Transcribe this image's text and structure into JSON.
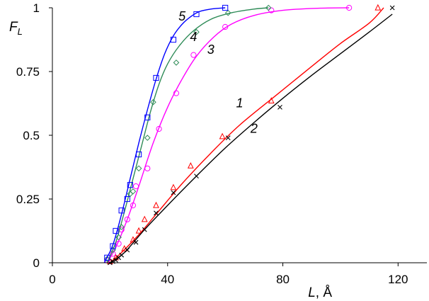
{
  "chart_data": {
    "type": "line",
    "xlabel_var": "L",
    "xlabel_unit": ", Å",
    "ylabel_var": "F",
    "ylabel_sub": "L",
    "xlim": [
      0,
      130
    ],
    "ylim": [
      0,
      1
    ],
    "xticks": [
      0,
      40,
      80,
      120
    ],
    "yticks": [
      0,
      0.25,
      0.5,
      0.75,
      1
    ],
    "ytick_labels": [
      "0",
      "0.25",
      "0.5",
      "0.75",
      "1"
    ],
    "series": [
      {
        "name": "1",
        "color": "#ff0000",
        "marker": "triangle",
        "curve": [
          [
            20,
            0
          ],
          [
            24,
            0.04
          ],
          [
            30,
            0.11
          ],
          [
            36,
            0.19
          ],
          [
            45,
            0.31
          ],
          [
            55,
            0.43
          ],
          [
            65,
            0.54
          ],
          [
            78,
            0.66
          ],
          [
            90,
            0.77
          ],
          [
            100,
            0.86
          ],
          [
            110,
            0.94
          ],
          [
            115,
            1.0
          ]
        ],
        "points": [
          [
            20,
            0.005
          ],
          [
            22,
            0.02
          ],
          [
            25,
            0.055
          ],
          [
            28,
            0.09
          ],
          [
            30,
            0.125
          ],
          [
            32,
            0.17
          ],
          [
            36,
            0.225
          ],
          [
            42,
            0.295
          ],
          [
            48,
            0.38
          ],
          [
            59,
            0.495
          ],
          [
            76,
            0.635
          ],
          [
            113,
            1.0
          ]
        ]
      },
      {
        "name": "2",
        "color": "#000000",
        "marker": "x",
        "curve": [
          [
            20,
            0
          ],
          [
            25,
            0.04
          ],
          [
            32,
            0.13
          ],
          [
            40,
            0.225
          ],
          [
            50,
            0.34
          ],
          [
            60,
            0.45
          ],
          [
            70,
            0.55
          ],
          [
            80,
            0.645
          ],
          [
            90,
            0.735
          ],
          [
            100,
            0.82
          ],
          [
            110,
            0.905
          ],
          [
            118,
            0.975
          ]
        ],
        "points": [
          [
            20,
            0.0
          ],
          [
            21,
            0.005
          ],
          [
            22,
            0.01
          ],
          [
            23,
            0.02
          ],
          [
            24,
            0.03
          ],
          [
            26,
            0.05
          ],
          [
            29,
            0.08
          ],
          [
            32,
            0.13
          ],
          [
            36,
            0.195
          ],
          [
            42,
            0.275
          ],
          [
            50,
            0.34
          ],
          [
            61,
            0.49
          ],
          [
            79,
            0.61
          ],
          [
            118,
            1.0
          ]
        ]
      },
      {
        "name": "3",
        "color": "#ff00ff",
        "marker": "circle",
        "curve": [
          [
            19,
            0
          ],
          [
            22,
            0.06
          ],
          [
            26,
            0.17
          ],
          [
            30,
            0.3
          ],
          [
            35,
            0.47
          ],
          [
            40,
            0.61
          ],
          [
            45,
            0.72
          ],
          [
            50,
            0.81
          ],
          [
            56,
            0.885
          ],
          [
            62,
            0.935
          ],
          [
            70,
            0.97
          ],
          [
            80,
            0.99
          ],
          [
            92,
            0.998
          ],
          [
            103,
            1.0
          ]
        ],
        "points": [
          [
            19,
            0.01
          ],
          [
            21,
            0.035
          ],
          [
            23,
            0.075
          ],
          [
            24,
            0.13
          ],
          [
            26,
            0.17
          ],
          [
            28,
            0.225
          ],
          [
            29,
            0.3
          ],
          [
            33,
            0.37
          ],
          [
            37,
            0.525
          ],
          [
            43,
            0.665
          ],
          [
            49,
            0.815
          ],
          [
            60,
            0.925
          ],
          [
            76,
            0.99
          ],
          [
            103,
            1.0
          ]
        ]
      },
      {
        "name": "4",
        "color": "#2e8b57",
        "marker": "diamond",
        "curve": [
          [
            19,
            0
          ],
          [
            22,
            0.08
          ],
          [
            25,
            0.2
          ],
          [
            28,
            0.33
          ],
          [
            31,
            0.46
          ],
          [
            34,
            0.59
          ],
          [
            37,
            0.7
          ],
          [
            40,
            0.78
          ],
          [
            44,
            0.85
          ],
          [
            49,
            0.91
          ],
          [
            55,
            0.955
          ],
          [
            62,
            0.98
          ],
          [
            70,
            0.995
          ],
          [
            75,
            1.0
          ]
        ],
        "points": [
          [
            19,
            0.015
          ],
          [
            21,
            0.05
          ],
          [
            23,
            0.1
          ],
          [
            24,
            0.14
          ],
          [
            27,
            0.27
          ],
          [
            28,
            0.28
          ],
          [
            30,
            0.37
          ],
          [
            33,
            0.49
          ],
          [
            35,
            0.63
          ],
          [
            43,
            0.785
          ],
          [
            50,
            0.905
          ],
          [
            61,
            0.98
          ],
          [
            75,
            1.0
          ]
        ]
      },
      {
        "name": "5",
        "color": "#0000ff",
        "marker": "square",
        "curve": [
          [
            18,
            0
          ],
          [
            21,
            0.07
          ],
          [
            24,
            0.19
          ],
          [
            27,
            0.33
          ],
          [
            30,
            0.47
          ],
          [
            33,
            0.6
          ],
          [
            36,
            0.72
          ],
          [
            39,
            0.82
          ],
          [
            42,
            0.89
          ],
          [
            45,
            0.935
          ],
          [
            48,
            0.965
          ],
          [
            51,
            0.985
          ],
          [
            55,
            0.995
          ],
          [
            60,
            1.0
          ]
        ],
        "points": [
          [
            19,
            0.02
          ],
          [
            21,
            0.065
          ],
          [
            22,
            0.125
          ],
          [
            24,
            0.205
          ],
          [
            26,
            0.25
          ],
          [
            27,
            0.305
          ],
          [
            30,
            0.425
          ],
          [
            33,
            0.57
          ],
          [
            36,
            0.725
          ],
          [
            42,
            0.875
          ],
          [
            50,
            0.975
          ],
          [
            60,
            1.0
          ]
        ]
      }
    ],
    "curve_labels": [
      {
        "text": "1",
        "x": 65,
        "y": 0.61
      },
      {
        "text": "2",
        "x": 70,
        "y": 0.51
      },
      {
        "text": "3",
        "x": 55,
        "y": 0.82
      },
      {
        "text": "4",
        "x": 49,
        "y": 0.87
      },
      {
        "text": "5",
        "x": 45,
        "y": 0.95
      }
    ]
  }
}
